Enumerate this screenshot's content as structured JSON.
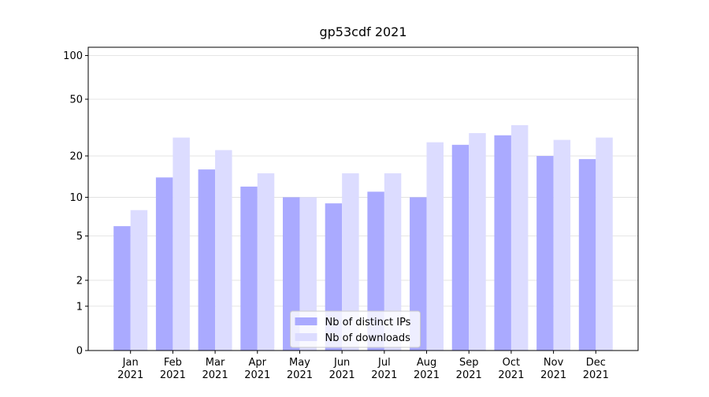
{
  "chart_data": {
    "type": "bar",
    "title": "gp53cdf 2021",
    "categories": [
      "Jan\n2021",
      "Feb\n2021",
      "Mar\n2021",
      "Apr\n2021",
      "May\n2021",
      "Jun\n2021",
      "Jul\n2021",
      "Aug\n2021",
      "Sep\n2021",
      "Oct\n2021",
      "Nov\n2021",
      "Dec\n2021"
    ],
    "series": [
      {
        "name": "Nb of distinct IPs",
        "color": "#aaaaff",
        "values": [
          6,
          14,
          16,
          12,
          10,
          9,
          11,
          10,
          24,
          28,
          20,
          19
        ]
      },
      {
        "name": "Nb of downloads",
        "color": "#dcdcff",
        "values": [
          8,
          27,
          22,
          15,
          10,
          15,
          15,
          25,
          29,
          33,
          26,
          27
        ]
      }
    ],
    "yscale": "log1p",
    "ylim": [
      0,
      114
    ],
    "yticks": [
      0,
      1,
      2,
      5,
      10,
      20,
      50,
      100
    ],
    "grid": true,
    "legend": "lower center"
  }
}
